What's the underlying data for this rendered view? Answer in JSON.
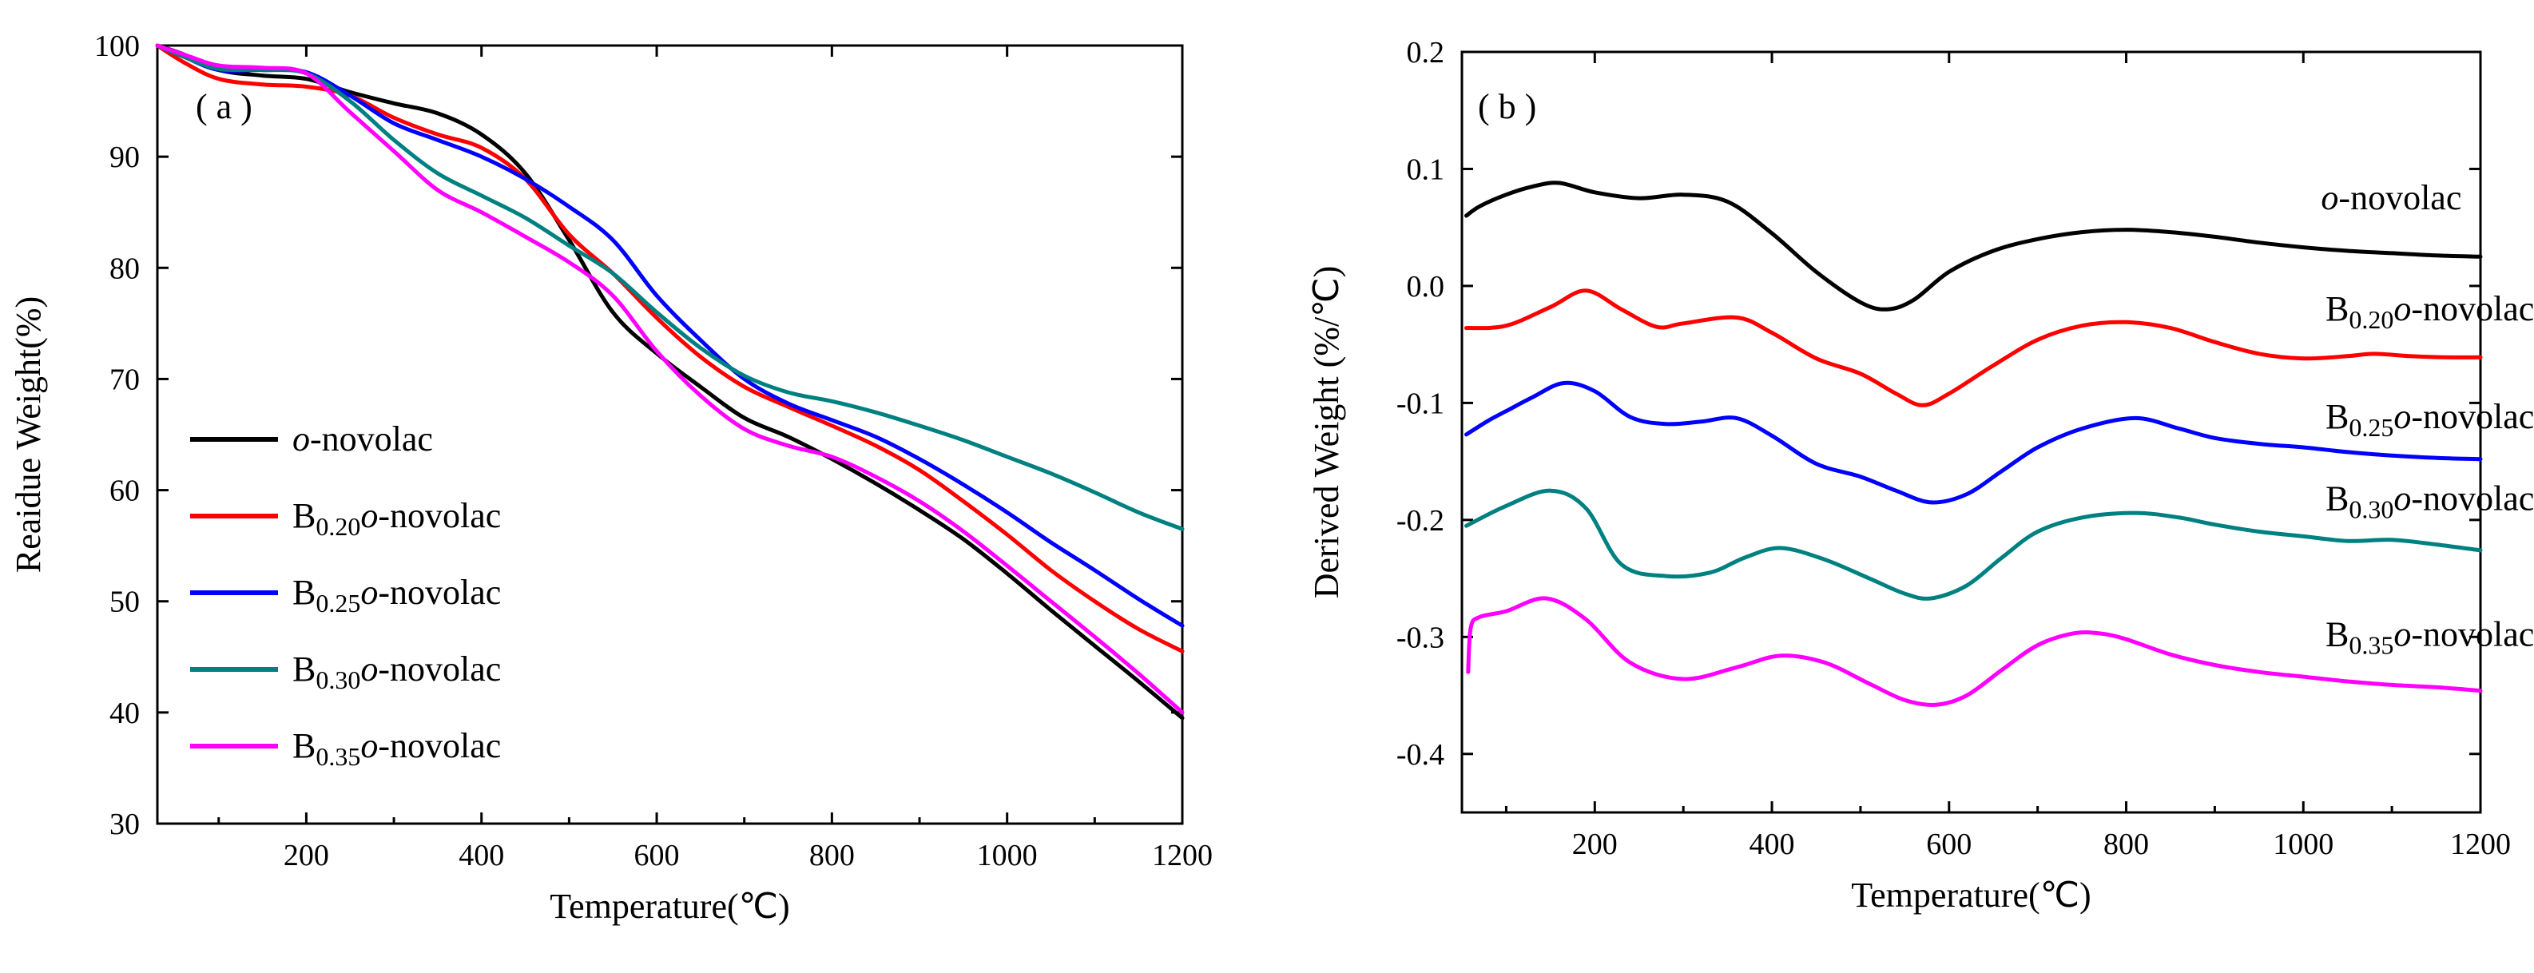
{
  "chart_data": [
    {
      "id": "a",
      "type": "line",
      "panel_label": "( a )",
      "xlabel": "Temperature(℃)",
      "ylabel": "Reaidue Weight(%)",
      "xlim": [
        30,
        1200
      ],
      "ylim": [
        30,
        100
      ],
      "xticks": [
        200,
        400,
        600,
        800,
        1000,
        1200
      ],
      "yticks": [
        30,
        40,
        50,
        60,
        70,
        80,
        90,
        100
      ],
      "legend_position": "lower-left",
      "series": [
        {
          "name": "o-novolac",
          "label_prefix": "",
          "label_sub": "",
          "label_italic": "o",
          "label_suffix": "-novolac",
          "color": "#000000",
          "x": [
            30,
            60,
            100,
            150,
            200,
            250,
            300,
            350,
            400,
            450,
            500,
            550,
            600,
            650,
            700,
            750,
            800,
            850,
            900,
            950,
            1000,
            1050,
            1100,
            1150,
            1200
          ],
          "y": [
            100,
            99.2,
            97.8,
            97.3,
            97.0,
            95.8,
            94.8,
            93.9,
            92.0,
            88.5,
            82.5,
            76.0,
            72.3,
            69.3,
            66.5,
            64.8,
            62.8,
            60.6,
            58.2,
            55.6,
            52.5,
            49.2,
            46.0,
            42.8,
            39.5
          ]
        },
        {
          "name": "B0.20-o-novolac",
          "label_prefix": "B",
          "label_sub": "0.20",
          "label_italic": "o",
          "label_suffix": "-novolac",
          "color": "#ff0000",
          "x": [
            30,
            60,
            100,
            150,
            200,
            250,
            300,
            350,
            400,
            450,
            500,
            550,
            600,
            650,
            700,
            750,
            800,
            850,
            900,
            950,
            1000,
            1050,
            1100,
            1150,
            1200
          ],
          "y": [
            100,
            98.5,
            97.0,
            96.5,
            96.3,
            95.5,
            93.5,
            92.0,
            90.8,
            88.0,
            83.0,
            79.5,
            75.5,
            72.0,
            69.3,
            67.5,
            65.8,
            64.0,
            61.8,
            59.0,
            56.0,
            52.8,
            50.0,
            47.5,
            45.5
          ]
        },
        {
          "name": "B0.25-o-novolac",
          "label_prefix": "B",
          "label_sub": "0.25",
          "label_italic": "o",
          "label_suffix": "-novolac",
          "color": "#0000ff",
          "x": [
            30,
            60,
            100,
            150,
            200,
            250,
            300,
            350,
            400,
            450,
            500,
            550,
            600,
            650,
            700,
            750,
            800,
            850,
            900,
            950,
            1000,
            1050,
            1100,
            1150,
            1200
          ],
          "y": [
            100,
            99.0,
            97.8,
            97.8,
            97.6,
            95.5,
            93.0,
            91.5,
            90.0,
            88.0,
            85.5,
            82.5,
            77.5,
            73.5,
            70.0,
            67.8,
            66.3,
            64.8,
            62.8,
            60.5,
            58.0,
            55.3,
            52.8,
            50.2,
            47.8
          ]
        },
        {
          "name": "B0.30-o-novolac",
          "label_prefix": "B",
          "label_sub": "0.30",
          "label_italic": "o",
          "label_suffix": "-novolac",
          "color": "#008080",
          "x": [
            30,
            60,
            100,
            150,
            200,
            250,
            300,
            350,
            400,
            450,
            500,
            550,
            600,
            650,
            700,
            750,
            800,
            850,
            900,
            950,
            1000,
            1050,
            1100,
            1150,
            1200
          ],
          "y": [
            100,
            99.0,
            97.9,
            97.8,
            97.5,
            95.0,
            91.5,
            88.5,
            86.5,
            84.5,
            82.0,
            79.5,
            76.0,
            72.8,
            70.3,
            68.8,
            68.0,
            67.0,
            65.8,
            64.5,
            63.0,
            61.5,
            59.8,
            58.0,
            56.5
          ]
        },
        {
          "name": "B0.35-o-novolac",
          "label_prefix": "B",
          "label_sub": "0.35",
          "label_italic": "o",
          "label_suffix": "-novolac",
          "color": "#ff00ff",
          "x": [
            30,
            60,
            100,
            150,
            200,
            250,
            300,
            350,
            400,
            450,
            500,
            550,
            600,
            650,
            700,
            750,
            800,
            850,
            900,
            950,
            1000,
            1050,
            1100,
            1150,
            1200
          ],
          "y": [
            100,
            99.2,
            98.2,
            98.0,
            97.5,
            94.0,
            90.5,
            87.0,
            85.0,
            82.8,
            80.5,
            77.5,
            72.5,
            68.5,
            65.5,
            64.0,
            63.0,
            61.2,
            59.0,
            56.3,
            53.2,
            50.0,
            46.8,
            43.5,
            40.0
          ]
        }
      ]
    },
    {
      "id": "b",
      "type": "line",
      "panel_label": "( b )",
      "xlabel": "Temperature(℃)",
      "ylabel": "Derived Weight (%/℃)",
      "xlim": [
        50,
        1200
      ],
      "ylim": [
        -0.45,
        0.2
      ],
      "xticks": [
        200,
        400,
        600,
        800,
        1000,
        1200
      ],
      "yticks": [
        -0.4,
        -0.3,
        -0.2,
        -0.1,
        0.0,
        0.1,
        0.2
      ],
      "ytick_labels": [
        "-0.4",
        "-0.3",
        "-0.2",
        "-0.1",
        "0.0",
        "0.1",
        "0.2"
      ],
      "legend_position": "inline-right",
      "series": [
        {
          "name": "o-novolac",
          "label_prefix": "",
          "label_sub": "",
          "label_italic": "o",
          "label_suffix": "-novolac",
          "label_x": 1020,
          "label_y": 0.075,
          "color": "#000000",
          "x": [
            55,
            70,
            100,
            130,
            160,
            200,
            250,
            300,
            350,
            400,
            450,
            500,
            530,
            560,
            600,
            650,
            700,
            750,
            800,
            850,
            900,
            950,
            1000,
            1050,
            1100,
            1150,
            1200
          ],
          "y": [
            0.06,
            0.068,
            0.078,
            0.085,
            0.088,
            0.08,
            0.075,
            0.078,
            0.072,
            0.045,
            0.012,
            -0.014,
            -0.02,
            -0.012,
            0.012,
            0.03,
            0.04,
            0.046,
            0.048,
            0.046,
            0.042,
            0.037,
            0.033,
            0.03,
            0.028,
            0.026,
            0.025
          ]
        },
        {
          "name": "B0.20-o-novolac",
          "label_prefix": "B",
          "label_sub": "0.20",
          "label_italic": "o",
          "label_suffix": "-novolac",
          "label_x": 1025,
          "label_y": -0.02,
          "color": "#ff0000",
          "x": [
            55,
            100,
            150,
            190,
            230,
            270,
            300,
            360,
            400,
            450,
            500,
            540,
            570,
            600,
            650,
            700,
            750,
            800,
            850,
            900,
            950,
            1000,
            1050,
            1080,
            1120,
            1160,
            1200
          ],
          "y": [
            -0.036,
            -0.034,
            -0.018,
            -0.004,
            -0.02,
            -0.035,
            -0.032,
            -0.027,
            -0.04,
            -0.062,
            -0.075,
            -0.092,
            -0.102,
            -0.092,
            -0.068,
            -0.046,
            -0.034,
            -0.031,
            -0.036,
            -0.048,
            -0.058,
            -0.062,
            -0.06,
            -0.058,
            -0.06,
            -0.061,
            -0.061
          ]
        },
        {
          "name": "B0.25-o-novolac",
          "label_prefix": "B",
          "label_sub": "0.25",
          "label_italic": "o",
          "label_suffix": "-novolac",
          "label_x": 1025,
          "label_y": -0.112,
          "color": "#0000ff",
          "x": [
            55,
            80,
            100,
            130,
            165,
            200,
            240,
            280,
            320,
            360,
            400,
            450,
            500,
            540,
            580,
            620,
            660,
            700,
            750,
            810,
            860,
            900,
            950,
            1000,
            1050,
            1100,
            1150,
            1200
          ],
          "y": [
            -0.127,
            -0.115,
            -0.107,
            -0.095,
            -0.083,
            -0.09,
            -0.112,
            -0.118,
            -0.116,
            -0.113,
            -0.128,
            -0.152,
            -0.163,
            -0.175,
            -0.185,
            -0.178,
            -0.158,
            -0.138,
            -0.122,
            -0.113,
            -0.122,
            -0.13,
            -0.135,
            -0.138,
            -0.142,
            -0.145,
            -0.147,
            -0.148
          ]
        },
        {
          "name": "B0.30-o-novolac",
          "label_prefix": "B",
          "label_sub": "0.30",
          "label_italic": "o",
          "label_suffix": "-novolac",
          "label_x": 1025,
          "label_y": -0.182,
          "color": "#008080",
          "x": [
            55,
            100,
            150,
            190,
            230,
            280,
            330,
            370,
            410,
            460,
            510,
            550,
            580,
            620,
            660,
            700,
            750,
            810,
            860,
            900,
            950,
            1000,
            1050,
            1100,
            1150,
            1200
          ],
          "y": [
            -0.205,
            -0.188,
            -0.175,
            -0.19,
            -0.238,
            -0.248,
            -0.245,
            -0.232,
            -0.224,
            -0.234,
            -0.25,
            -0.263,
            -0.267,
            -0.256,
            -0.232,
            -0.21,
            -0.198,
            -0.194,
            -0.198,
            -0.204,
            -0.21,
            -0.214,
            -0.218,
            -0.217,
            -0.221,
            -0.226
          ]
        },
        {
          "name": "B0.35-o-novolac",
          "label_prefix": "B",
          "label_sub": "0.35",
          "label_italic": "o",
          "label_suffix": "-novolac",
          "label_x": 1025,
          "label_y": -0.298,
          "color": "#ff00ff",
          "x": [
            57,
            60,
            70,
            100,
            145,
            190,
            240,
            300,
            360,
            410,
            460,
            510,
            550,
            585,
            620,
            660,
            700,
            740,
            770,
            800,
            850,
            900,
            950,
            1000,
            1050,
            1100,
            1150,
            1200
          ],
          "y": [
            -0.33,
            -0.292,
            -0.283,
            -0.278,
            -0.267,
            -0.285,
            -0.322,
            -0.336,
            -0.326,
            -0.316,
            -0.322,
            -0.34,
            -0.354,
            -0.358,
            -0.35,
            -0.328,
            -0.307,
            -0.297,
            -0.297,
            -0.302,
            -0.315,
            -0.324,
            -0.33,
            -0.334,
            -0.338,
            -0.341,
            -0.343,
            -0.346
          ]
        }
      ]
    }
  ]
}
